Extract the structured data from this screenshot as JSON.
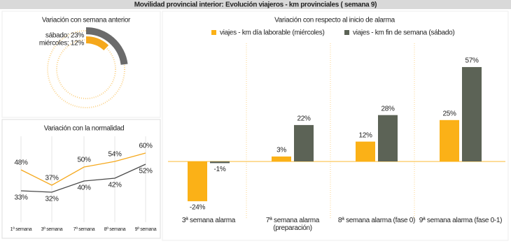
{
  "header": {
    "title": "Movilidad provincial interior: Evolución viajeros - km provinciales ( semana 9)"
  },
  "chart_data": [
    {
      "type": "radialbar",
      "title": "Variación con semana anterior",
      "categories": [
        "sábado",
        "miércoles"
      ],
      "values": [
        23,
        12
      ],
      "value_labels": [
        "sábado; 23%",
        "miércoles; 12%"
      ],
      "colors": [
        "#6b6b6b",
        "#f5a81c"
      ]
    },
    {
      "type": "line",
      "title": "Variación con la normalidad",
      "categories": [
        "1ª semana",
        "3ª semana",
        "7ª semana",
        "8ª semana",
        "9ª semana"
      ],
      "ylim": [
        20,
        70
      ],
      "series": [
        {
          "color": "#f5a81c",
          "values": [
            48,
            37,
            50,
            54,
            60
          ],
          "value_labels": [
            "48%",
            "37%",
            "50%",
            "54%",
            "60%"
          ]
        },
        {
          "color": "#4a4a4a",
          "values": [
            33,
            32,
            40,
            42,
            52
          ],
          "value_labels": [
            "33%",
            "32%",
            "40%",
            "42%",
            "52%"
          ]
        }
      ]
    },
    {
      "type": "bar",
      "title": "Variación con respecto al inicio de alarma",
      "categories": [
        "3ª semana alarma",
        "7ª semana alarma\n(preparación)",
        "8ª semana alarma (fase 0)",
        "9ª semana alarma (fase 0-1)"
      ],
      "ylim": [
        -35,
        65
      ],
      "series": [
        {
          "name": "viajes - km día laborable (miércoles)",
          "color": "#fbb117",
          "values": [
            -24,
            3,
            12,
            25
          ],
          "value_labels": [
            "-24%",
            "3%",
            "12%",
            "25%"
          ]
        },
        {
          "name": "viajes - km fin de semana (sábado)",
          "color": "#5c6356",
          "values": [
            -1,
            22,
            28,
            57
          ],
          "value_labels": [
            "-1%",
            "22%",
            "28%",
            "57%"
          ]
        }
      ]
    }
  ]
}
